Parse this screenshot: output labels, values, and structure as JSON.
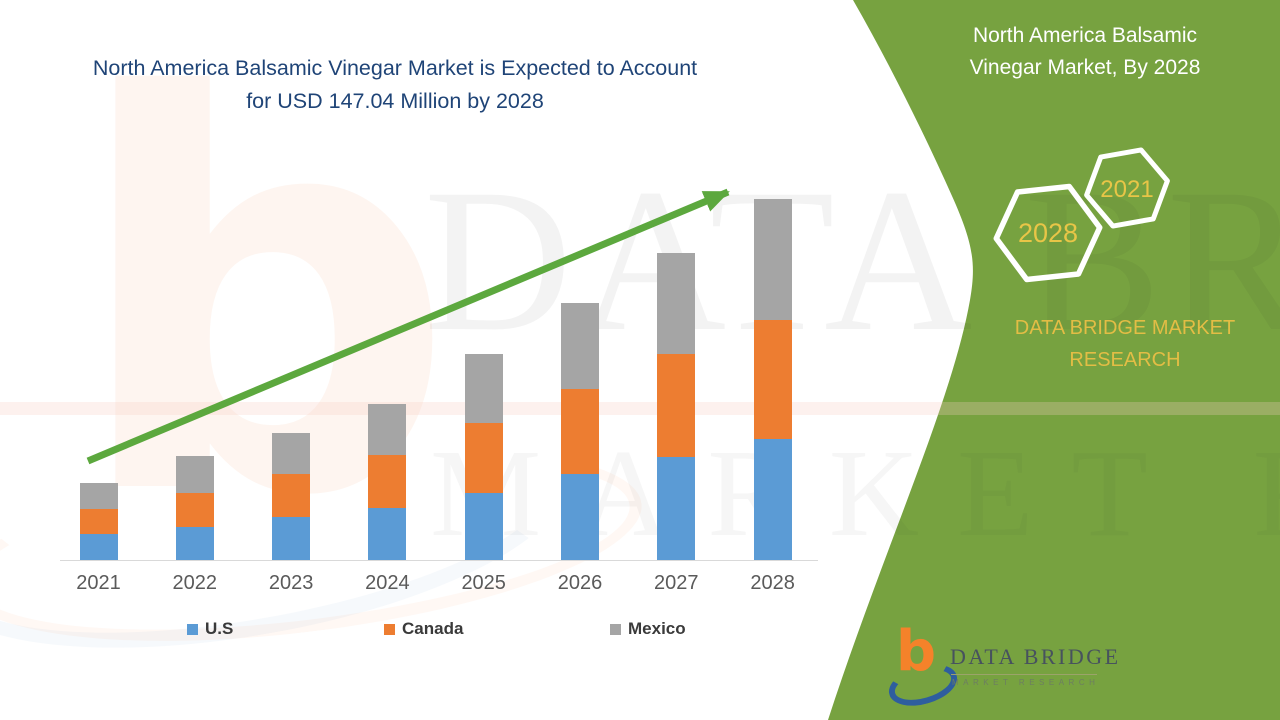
{
  "title": {
    "line1": "North America Balsamic Vinegar Market is Expected to Account",
    "line2": "for USD 147.04 Million by 2028",
    "color": "#1F4477"
  },
  "panel": {
    "bg_color": "#77A240",
    "heading_line1": "North America Balsamic",
    "heading_line2": "Vinegar Market, By 2028",
    "hexagons": [
      {
        "label": "2021"
      },
      {
        "label": "2028"
      }
    ],
    "brand_line1": "DATA BRIDGE MARKET",
    "brand_line2": "RESEARCH",
    "accent_text_color": "#E3BD45",
    "hexagon_text_color": "#E8C547"
  },
  "chart_data": {
    "type": "bar",
    "stacked": true,
    "title": "North America Balsamic Vinegar Market is Expected to Account for USD 147.04 Million by 2028",
    "unit": "USD Million",
    "categories": [
      "2021",
      "2022",
      "2023",
      "2024",
      "2025",
      "2026",
      "2027",
      "2028"
    ],
    "series": [
      {
        "name": "U.S",
        "color": "#5B9BD5",
        "values": [
          10.6,
          13.4,
          17.5,
          21.2,
          27.3,
          35.0,
          42.0,
          49.3
        ]
      },
      {
        "name": "Canada",
        "color": "#ED7D31",
        "values": [
          10.2,
          13.8,
          17.5,
          21.6,
          28.5,
          34.6,
          42.0,
          48.5
        ]
      },
      {
        "name": "Mexico",
        "color": "#A5A5A5",
        "values": [
          10.6,
          15.1,
          16.7,
          20.8,
          28.1,
          35.0,
          41.1,
          49.24
        ]
      }
    ],
    "totals": [
      31.4,
      42.3,
      51.7,
      63.6,
      83.9,
      104.6,
      125.1,
      147.04
    ],
    "highlight": {
      "final_year": "2028",
      "final_total_musd": "147.04"
    },
    "ylim": [
      0,
      160
    ],
    "grid": false,
    "legend_position": "bottom",
    "trend_arrow": true,
    "trend_arrow_color": "#5CA83E",
    "axis_line_color": "#D9D9D9",
    "x_label_color": "#5A5A5A"
  },
  "legend": {
    "items": [
      {
        "label": "U.S",
        "color": "#5B9BD5"
      },
      {
        "label": "Canada",
        "color": "#ED7D31"
      },
      {
        "label": "Mexico",
        "color": "#A5A5A5"
      }
    ]
  },
  "logo": {
    "b_letter": "b",
    "name": "DATA BRIDGE",
    "tagline": "MARKET RESEARCH"
  },
  "watermark": {
    "letter": "b",
    "row1": "DATA BRIDGE",
    "row2": "MARKET RESEARCH"
  }
}
